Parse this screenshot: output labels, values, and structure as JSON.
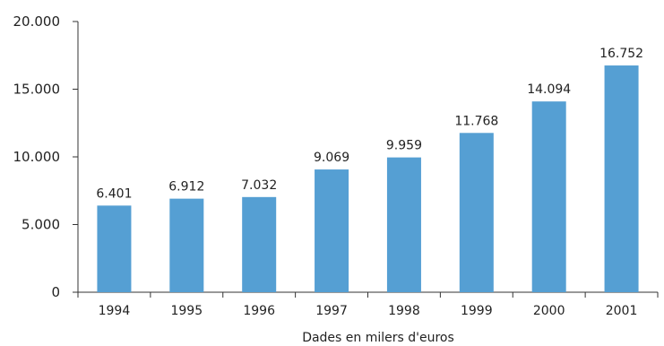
{
  "chart_data": {
    "type": "bar",
    "categories": [
      "1994",
      "1995",
      "1996",
      "1997",
      "1998",
      "1999",
      "2000",
      "2001"
    ],
    "values": [
      6401,
      6912,
      7032,
      9069,
      9959,
      11768,
      14094,
      16752
    ],
    "data_labels": [
      "6.401",
      "6.912",
      "7.032",
      "9.069",
      "9.959",
      "11.768",
      "14.094",
      "16.752"
    ],
    "title": "",
    "xlabel": "Dades en milers d'euros",
    "ylabel": "",
    "ylim": [
      0,
      20000
    ],
    "yticks": [
      0,
      5000,
      10000,
      15000,
      20000
    ],
    "ytick_labels": [
      "0",
      "5.000",
      "10.000",
      "15.000",
      "20.000"
    ],
    "bar_color": "#559fd3",
    "axis_color": "#333333",
    "grid": false,
    "legend": "none"
  }
}
